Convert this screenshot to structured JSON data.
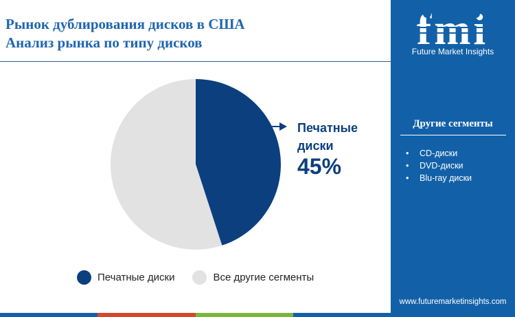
{
  "header": {
    "title_line1": "Рынок дублирования дисков в США",
    "title_line2": "Анализ рынка по типу дисков"
  },
  "chart_data": {
    "type": "pie",
    "slices": [
      {
        "label": "Печатные диски",
        "value": 45,
        "color": "#0c3f7e"
      },
      {
        "label": "Все другие сегменты",
        "value": 55,
        "color": "#e2e2e2"
      }
    ],
    "start": "12 o'clock, clockwise",
    "legend_position": "bottom",
    "callout": {
      "label": "Печатные диски",
      "value_text": "45%"
    }
  },
  "colors": {
    "title": "#1f66b0",
    "sidebar_bg": "#1261a8",
    "bottom_bar": [
      "#1261a8",
      "#d3482b",
      "#7ab83d",
      "#1261a8"
    ]
  },
  "sidebar": {
    "logo_text": "fmi",
    "logo_subtitle": "Future Market Insights",
    "panel_title": "Другие сегменты",
    "segments": [
      "CD-диски",
      "DVD-диски",
      "Blu-ray диски"
    ],
    "website": "www.futuremarketinsights.com"
  }
}
